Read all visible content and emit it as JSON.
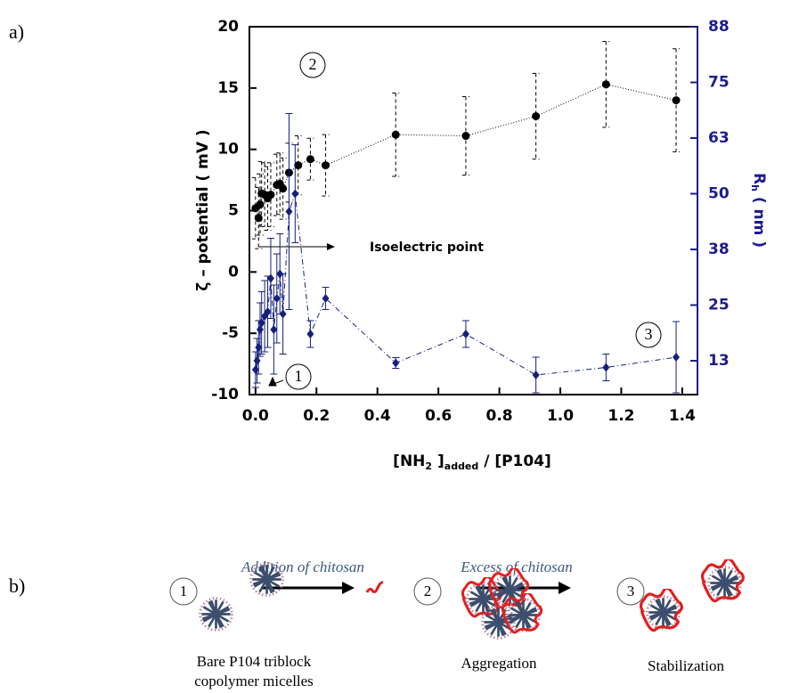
{
  "chart_data": {
    "type": "scatter-dual",
    "panel_label": "a)",
    "ylabel": "ζ – potential  ( mV )",
    "y2label": [
      "R",
      "h",
      " ( nm )"
    ],
    "xlabel": [
      "[NH",
      "2",
      " ]",
      "added",
      " / [P104]"
    ],
    "xlim": [
      -0.02,
      1.45
    ],
    "xticks": [
      {
        "value": 0,
        "label": "0.0"
      },
      0.2,
      0.4,
      0.6,
      0.8,
      {
        "value": 1,
        "label": "1.0"
      },
      1.2,
      1.4
    ],
    "ylim": [
      -10,
      20
    ],
    "yticks": [
      -10,
      -5,
      0,
      5,
      10,
      15,
      20
    ],
    "y2lim": [
      4.9,
      87.5
    ],
    "y2ticks": [
      {
        "value": 87.5,
        "label": "88"
      },
      75,
      {
        "value": 62.5,
        "label": "63"
      },
      50,
      {
        "value": 37.5,
        "label": "38"
      },
      25,
      {
        "value": 12.5,
        "label": "13"
      }
    ],
    "series": [
      {
        "color": "#000000",
        "axis": "y",
        "x": [
          0,
          0.01,
          0.015,
          0.02,
          0.03,
          0.04,
          0.05,
          0.07,
          0.08,
          0.09,
          0.11,
          0.14,
          0.18,
          0.23,
          0.46,
          0.69,
          0.92,
          1.15,
          1.38
        ],
        "values": [
          5.2,
          4.4,
          5.5,
          6.4,
          6.3,
          6,
          6.3,
          7.1,
          7.2,
          6.8,
          8.1,
          8.7,
          9.2,
          8.7,
          11.2,
          11.1,
          12.7,
          15.3,
          14
        ],
        "errors": [
          2.5,
          2.5,
          2.5,
          2.6,
          2.6,
          2.6,
          2.6,
          2.5,
          2.5,
          2.5,
          2.4,
          2.4,
          1.7,
          2.5,
          3.4,
          3.2,
          3.5,
          3.5,
          4.2
        ]
      },
      {
        "color": "#15207a",
        "axis": "y2",
        "x": [
          0,
          0.005,
          0.01,
          0.015,
          0.02,
          0.03,
          0.04,
          0.05,
          0.06,
          0.07,
          0.08,
          0.09,
          0.11,
          0.13,
          0.18,
          0.23,
          0.46,
          0.69,
          0.92,
          1.15,
          1.38
        ],
        "values": [
          10.5,
          12.5,
          15.5,
          19.5,
          21,
          22.5,
          23.5,
          31,
          19.5,
          26.5,
          32,
          23,
          46,
          50,
          18.5,
          26.5,
          12,
          18.5,
          9.3,
          11,
          13.3
        ],
        "errors": [
          4,
          5,
          6,
          6,
          7,
          8,
          8,
          9,
          10,
          10,
          9,
          9,
          22,
          11,
          3,
          2.5,
          1.2,
          3,
          4,
          3,
          8
        ]
      }
    ],
    "annotations": {
      "isoelectric": "Isoelectric point",
      "mark1": "1",
      "mark2": "2",
      "mark3": "3"
    }
  },
  "diagram": {
    "panel_label": "b)",
    "steps": [
      "1",
      "2",
      "3"
    ],
    "arrows": [
      "Addition of chitosan",
      "Excess of chitosan"
    ],
    "captions": [
      "Bare P104 triblock",
      "copolymer micelles",
      "Aggregation",
      "Stabilization"
    ]
  }
}
